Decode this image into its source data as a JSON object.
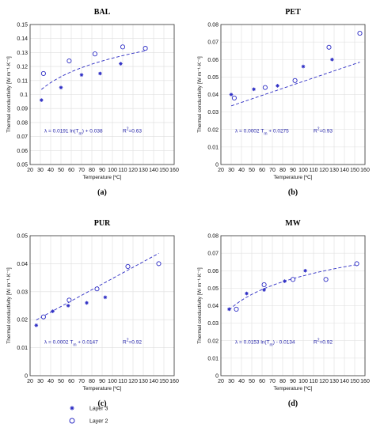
{
  "colors": {
    "series": "#2c2cc4",
    "equation": "#1f1fa8",
    "grid": "#dedede",
    "axis": "#333333"
  },
  "legend": {
    "placement": "bottom-left",
    "entries": [
      {
        "label": "Layer 3",
        "marker": "asterisk"
      },
      {
        "label": "Layer 2",
        "marker": "circle"
      }
    ]
  },
  "chart_data": [
    {
      "type": "scatter",
      "title": "BAL",
      "sublabel": "(a)",
      "xlabel": "Temperature [ºC]",
      "ylabel": "Thermal conductivity [W·m⁻¹·K⁻¹]",
      "xlim": [
        20,
        160
      ],
      "ylim": [
        0.05,
        0.15
      ],
      "xticks": [
        20,
        30,
        40,
        50,
        60,
        70,
        80,
        90,
        100,
        110,
        120,
        130,
        140,
        150,
        160
      ],
      "yticks": [
        0.05,
        0.06,
        0.07,
        0.08,
        0.09,
        0.1,
        0.11,
        0.12,
        0.13,
        0.14,
        0.15
      ],
      "ytick_labels": [
        "0.05",
        "0.06",
        "0.07",
        "0.08",
        "0.09",
        "0.1",
        "0.11",
        "0.12",
        "0.13",
        "0.14",
        "0.15"
      ],
      "grid": true,
      "fit": {
        "kind": "log",
        "a": 0.0191,
        "b": 0.038,
        "x_range": [
          31,
          132
        ]
      },
      "equation": "λ = 0.0191 ln(T",
      "equation_sub": "m",
      "equation_tail": ") + 0.038",
      "r2_label": "R",
      "r2_sup": "2",
      "r2_value": "=0.63",
      "series": [
        {
          "name": "Layer 3",
          "marker": "asterisk",
          "x": [
            31,
            50,
            70,
            88,
            108
          ],
          "y": [
            0.096,
            0.105,
            0.114,
            0.115,
            0.122
          ]
        },
        {
          "name": "Layer 2",
          "marker": "circle",
          "x": [
            33,
            58,
            83,
            110,
            132
          ],
          "y": [
            0.115,
            0.124,
            0.129,
            0.134,
            0.133
          ]
        }
      ]
    },
    {
      "type": "scatter",
      "title": "PET",
      "sublabel": "(b)",
      "xlabel": "Temperature [ºC]",
      "ylabel": "Thermal conductivity [W·m⁻¹·K⁻¹]",
      "xlim": [
        20,
        160
      ],
      "ylim": [
        0,
        0.08
      ],
      "xticks": [
        20,
        30,
        40,
        50,
        60,
        70,
        80,
        90,
        100,
        110,
        120,
        130,
        140,
        150,
        160
      ],
      "yticks": [
        0,
        0.01,
        0.02,
        0.03,
        0.04,
        0.05,
        0.06,
        0.07,
        0.08
      ],
      "ytick_labels": [
        "0",
        "0.01",
        "0.02",
        "0.03",
        "0.04",
        "0.05",
        "0.06",
        "0.07",
        "0.08"
      ],
      "grid": true,
      "fit": {
        "kind": "linear",
        "a": 0.0002,
        "b": 0.0275,
        "x_range": [
          30,
          155
        ]
      },
      "equation": "λ = 0.0002 T",
      "equation_sub": "m",
      "equation_tail": " + 0.0275",
      "r2_label": "R",
      "r2_sup": "2",
      "r2_value": "=0.93",
      "series": [
        {
          "name": "Layer 3",
          "marker": "asterisk",
          "x": [
            30,
            52,
            75,
            100,
            128
          ],
          "y": [
            0.04,
            0.043,
            0.045,
            0.056,
            0.06
          ]
        },
        {
          "name": "Layer 2",
          "marker": "circle",
          "x": [
            33,
            63,
            92,
            125,
            155
          ],
          "y": [
            0.038,
            0.044,
            0.048,
            0.067,
            0.075
          ]
        }
      ]
    },
    {
      "type": "scatter",
      "title": "PUR",
      "sublabel": "(c)",
      "xlabel": "Temperature [ºC]",
      "ylabel": "Thermal conductivity [W·m⁻¹·K⁻¹]",
      "xlim": [
        20,
        160
      ],
      "ylim": [
        0,
        0.05
      ],
      "xticks": [
        20,
        30,
        40,
        50,
        60,
        70,
        80,
        90,
        100,
        110,
        120,
        130,
        140,
        150,
        160
      ],
      "yticks": [
        0,
        0.01,
        0.02,
        0.03,
        0.04,
        0.05
      ],
      "ytick_labels": [
        "0",
        "0.01",
        "0.02",
        "0.03",
        "0.04",
        "0.05"
      ],
      "grid": true,
      "fit": {
        "kind": "linear",
        "a": 0.0002,
        "b": 0.0147,
        "x_range": [
          26,
          145
        ]
      },
      "equation": "λ = 0.0002 T",
      "equation_sub": "m",
      "equation_tail": " + 0.0147",
      "r2_label": "R",
      "r2_sup": "2",
      "r2_value": "=0.92",
      "series": [
        {
          "name": "Layer 3",
          "marker": "asterisk",
          "x": [
            26,
            42,
            57,
            75,
            93
          ],
          "y": [
            0.018,
            0.023,
            0.025,
            0.026,
            0.028
          ]
        },
        {
          "name": "Layer 2",
          "marker": "circle",
          "x": [
            33,
            58,
            85,
            115,
            145
          ],
          "y": [
            0.021,
            0.027,
            0.031,
            0.039,
            0.04
          ]
        }
      ]
    },
    {
      "type": "scatter",
      "title": "MW",
      "sublabel": "(d)",
      "xlabel": "Temperature [ºC]",
      "ylabel": "Thermal conductivity [W·m⁻¹·K⁻¹]",
      "xlim": [
        20,
        160
      ],
      "ylim": [
        0,
        0.08
      ],
      "xticks": [
        20,
        30,
        40,
        50,
        60,
        70,
        80,
        90,
        100,
        110,
        120,
        130,
        140,
        150,
        160
      ],
      "yticks": [
        0,
        0.01,
        0.02,
        0.03,
        0.04,
        0.05,
        0.06,
        0.07,
        0.08
      ],
      "ytick_labels": [
        "0",
        "0.01",
        "0.02",
        "0.03",
        "0.04",
        "0.05",
        "0.06",
        "0.07",
        "0.08"
      ],
      "grid": true,
      "fit": {
        "kind": "log",
        "a": 0.0153,
        "b": -0.0134,
        "x_range": [
          28,
          152
        ]
      },
      "equation": "λ = 0.0153 ln(T",
      "equation_sub": "m",
      "equation_tail": ") - 0.0134",
      "r2_label": "R",
      "r2_sup": "2",
      "r2_value": "=0.92",
      "series": [
        {
          "name": "Layer 3",
          "marker": "asterisk",
          "x": [
            28,
            45,
            62,
            82,
            102
          ],
          "y": [
            0.038,
            0.047,
            0.049,
            0.054,
            0.06
          ]
        },
        {
          "name": "Layer 2",
          "marker": "circle",
          "x": [
            35,
            62,
            90,
            122,
            152
          ],
          "y": [
            0.038,
            0.052,
            0.055,
            0.055,
            0.064
          ]
        }
      ]
    }
  ]
}
